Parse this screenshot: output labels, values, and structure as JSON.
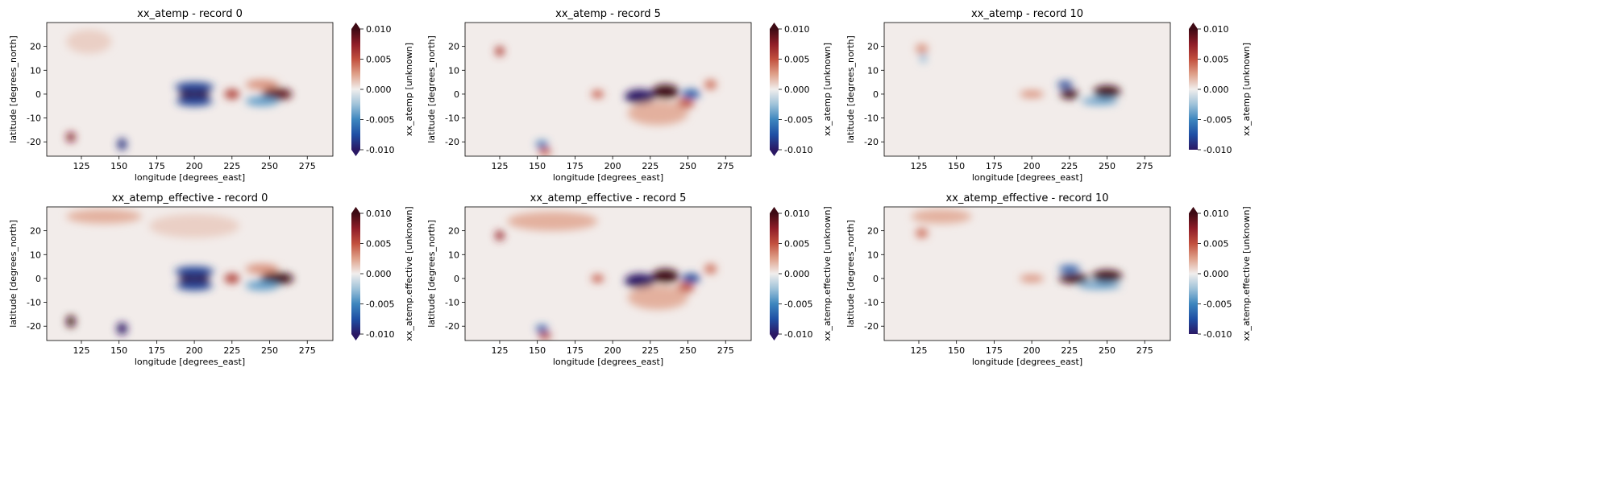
{
  "colormap": {
    "name": "balance",
    "stops": [
      "#2a1864",
      "#1f4fa4",
      "#3d86be",
      "#9fc2d9",
      "#f1eeed",
      "#dfa18a",
      "#c2503e",
      "#8f1d28",
      "#3e0a14"
    ],
    "under_color": "#2a1864",
    "over_color": "#3e0a14"
  },
  "chart_data": [
    {
      "type": "heatmap",
      "title": "xx_atemp - record 0",
      "xlabel": "longitude [degrees_east]",
      "ylabel": "latitude [degrees_north]",
      "xlim": [
        102,
        292
      ],
      "ylim": [
        -26,
        30
      ],
      "xticks": [
        125,
        150,
        175,
        200,
        225,
        250,
        275
      ],
      "yticks": [
        -20,
        -10,
        0,
        10,
        20
      ],
      "colorbar": {
        "label": "xx_atemp [unknown]",
        "vmin": -0.01,
        "vmax": 0.01,
        "ticks": [
          "-0.010",
          "-0.005",
          "0.000",
          "0.005",
          "0.010"
        ],
        "extend": "both"
      },
      "features": [
        {
          "lon": 200,
          "lat": 0,
          "value": 0.012,
          "w": 10,
          "h": 2.5
        },
        {
          "lon": 200,
          "lat": 3,
          "value": -0.008,
          "w": 13,
          "h": 2
        },
        {
          "lon": 200,
          "lat": -3,
          "value": -0.008,
          "w": 12,
          "h": 2
        },
        {
          "lon": 225,
          "lat": 0,
          "value": 0.006,
          "w": 5,
          "h": 2
        },
        {
          "lon": 255,
          "lat": 0,
          "value": 0.009,
          "w": 10,
          "h": 2.5
        },
        {
          "lon": 245,
          "lat": -3,
          "value": -0.004,
          "w": 11,
          "h": 2
        },
        {
          "lon": 245,
          "lat": 4,
          "value": 0.003,
          "w": 11,
          "h": 2
        },
        {
          "lon": 118,
          "lat": -18,
          "value": 0.008,
          "w": 3,
          "h": 2
        },
        {
          "lon": 152,
          "lat": -21,
          "value": -0.009,
          "w": 3,
          "h": 2.5
        },
        {
          "lon": 130,
          "lat": 22,
          "value": 0.001,
          "w": 15,
          "h": 5
        }
      ]
    },
    {
      "type": "heatmap",
      "title": "xx_atemp - record 5",
      "xlabel": "longitude [degrees_east]",
      "ylabel": "latitude [degrees_north]",
      "xlim": [
        102,
        292
      ],
      "ylim": [
        -26,
        30
      ],
      "xticks": [
        125,
        150,
        175,
        200,
        225,
        250,
        275
      ],
      "yticks": [
        -20,
        -10,
        0,
        10,
        20
      ],
      "colorbar": {
        "label": "xx_atemp [unknown]",
        "vmin": -0.01,
        "vmax": 0.01,
        "ticks": [
          "-0.010",
          "-0.005",
          "0.000",
          "0.005",
          "0.010"
        ],
        "extend": "both"
      },
      "features": [
        {
          "lon": 218,
          "lat": -1,
          "value": -0.011,
          "w": 10,
          "h": 3
        },
        {
          "lon": 235,
          "lat": 1,
          "value": 0.013,
          "w": 9,
          "h": 3
        },
        {
          "lon": 252,
          "lat": 0,
          "value": -0.007,
          "w": 6,
          "h": 2
        },
        {
          "lon": 248,
          "lat": -4,
          "value": 0.005,
          "w": 6,
          "h": 2
        },
        {
          "lon": 265,
          "lat": 4,
          "value": 0.004,
          "w": 4,
          "h": 2
        },
        {
          "lon": 190,
          "lat": 0,
          "value": 0.005,
          "w": 4,
          "h": 1.5
        },
        {
          "lon": 125,
          "lat": 18,
          "value": 0.006,
          "w": 3,
          "h": 2
        },
        {
          "lon": 153,
          "lat": -21,
          "value": -0.006,
          "w": 4,
          "h": 1.5
        },
        {
          "lon": 155,
          "lat": -24,
          "value": 0.005,
          "w": 4,
          "h": 1.5
        },
        {
          "lon": 230,
          "lat": -8,
          "value": 0.002,
          "w": 20,
          "h": 5
        }
      ]
    },
    {
      "type": "heatmap",
      "title": "xx_atemp - record 10",
      "xlabel": "longitude [degrees_east]",
      "ylabel": "latitude [degrees_north]",
      "xlim": [
        102,
        292
      ],
      "ylim": [
        -26,
        30
      ],
      "xticks": [
        125,
        150,
        175,
        200,
        225,
        250,
        275
      ],
      "yticks": [
        -20,
        -10,
        0,
        10,
        20
      ],
      "colorbar": {
        "label": "xx_atemp [unknown]",
        "vmin": -0.01,
        "vmax": 0.01,
        "ticks": [
          "-0.010",
          "-0.005",
          "0.000",
          "0.005",
          "0.010"
        ],
        "extend": "max"
      },
      "features": [
        {
          "lon": 225,
          "lat": 0,
          "value": 0.011,
          "w": 6,
          "h": 2
        },
        {
          "lon": 250,
          "lat": 1,
          "value": 0.012,
          "w": 9,
          "h": 2.5
        },
        {
          "lon": 222,
          "lat": 4,
          "value": -0.008,
          "w": 5,
          "h": 1.5
        },
        {
          "lon": 245,
          "lat": -3,
          "value": -0.004,
          "w": 12,
          "h": 1.5
        },
        {
          "lon": 200,
          "lat": 0,
          "value": 0.003,
          "w": 8,
          "h": 1.5
        },
        {
          "lon": 127,
          "lat": 19,
          "value": 0.003,
          "w": 4,
          "h": 2
        },
        {
          "lon": 128,
          "lat": 15,
          "value": -0.003,
          "w": 2,
          "h": 2
        }
      ]
    },
    {
      "type": "heatmap",
      "title": "xx_atemp_effective - record 0",
      "xlabel": "longitude [degrees_east]",
      "ylabel": "latitude [degrees_north]",
      "xlim": [
        102,
        292
      ],
      "ylim": [
        -26,
        30
      ],
      "xticks": [
        125,
        150,
        175,
        200,
        225,
        250,
        275
      ],
      "yticks": [
        -20,
        -10,
        0,
        10,
        20
      ],
      "colorbar": {
        "label": "xx_atemp.effective [unknown]",
        "vmin": -0.01,
        "vmax": 0.01,
        "ticks": [
          "-0.010",
          "-0.005",
          "0.000",
          "0.005",
          "0.010"
        ],
        "extend": "both"
      },
      "features": [
        {
          "lon": 200,
          "lat": 0,
          "value": 0.012,
          "w": 10,
          "h": 2.5
        },
        {
          "lon": 200,
          "lat": 3,
          "value": -0.008,
          "w": 13,
          "h": 2
        },
        {
          "lon": 200,
          "lat": -3,
          "value": -0.008,
          "w": 12,
          "h": 2
        },
        {
          "lon": 225,
          "lat": 0,
          "value": 0.006,
          "w": 5,
          "h": 2
        },
        {
          "lon": 255,
          "lat": 0,
          "value": 0.01,
          "w": 11,
          "h": 2.5
        },
        {
          "lon": 245,
          "lat": -3,
          "value": -0.004,
          "w": 11,
          "h": 2
        },
        {
          "lon": 245,
          "lat": 4,
          "value": 0.003,
          "w": 11,
          "h": 2
        },
        {
          "lon": 118,
          "lat": -18,
          "value": 0.01,
          "w": 3,
          "h": 2.5
        },
        {
          "lon": 152,
          "lat": -21,
          "value": -0.011,
          "w": 3.5,
          "h": 2.5
        },
        {
          "lon": 140,
          "lat": 26,
          "value": 0.002,
          "w": 25,
          "h": 3
        },
        {
          "lon": 200,
          "lat": 22,
          "value": 0.001,
          "w": 30,
          "h": 5
        }
      ]
    },
    {
      "type": "heatmap",
      "title": "xx_atemp_effective - record 5",
      "xlabel": "longitude [degrees_east]",
      "ylabel": "latitude [degrees_north]",
      "xlim": [
        102,
        292
      ],
      "ylim": [
        -26,
        30
      ],
      "xticks": [
        125,
        150,
        175,
        200,
        225,
        250,
        275
      ],
      "yticks": [
        -20,
        -10,
        0,
        10,
        20
      ],
      "colorbar": {
        "label": "xx_atemp.effective [unknown]",
        "vmin": -0.01,
        "vmax": 0.01,
        "ticks": [
          "-0.010",
          "-0.005",
          "0.000",
          "0.005",
          "0.010"
        ],
        "extend": "both"
      },
      "features": [
        {
          "lon": 218,
          "lat": -1,
          "value": -0.012,
          "w": 10,
          "h": 3
        },
        {
          "lon": 235,
          "lat": 1,
          "value": 0.013,
          "w": 9,
          "h": 3
        },
        {
          "lon": 252,
          "lat": 0,
          "value": -0.008,
          "w": 6,
          "h": 2
        },
        {
          "lon": 248,
          "lat": -4,
          "value": 0.005,
          "w": 6,
          "h": 2
        },
        {
          "lon": 265,
          "lat": 4,
          "value": 0.004,
          "w": 4,
          "h": 2
        },
        {
          "lon": 190,
          "lat": 0,
          "value": 0.005,
          "w": 4,
          "h": 1.5
        },
        {
          "lon": 125,
          "lat": 18,
          "value": 0.007,
          "w": 3,
          "h": 2
        },
        {
          "lon": 153,
          "lat": -21,
          "value": -0.007,
          "w": 4,
          "h": 1.5
        },
        {
          "lon": 155,
          "lat": -24,
          "value": 0.006,
          "w": 4,
          "h": 1.5
        },
        {
          "lon": 160,
          "lat": 24,
          "value": 0.002,
          "w": 30,
          "h": 4
        },
        {
          "lon": 230,
          "lat": -8,
          "value": 0.002,
          "w": 20,
          "h": 5
        }
      ]
    },
    {
      "type": "heatmap",
      "title": "xx_atemp_effective - record 10",
      "xlabel": "longitude [degrees_east]",
      "ylabel": "latitude [degrees_north]",
      "xlim": [
        102,
        292
      ],
      "ylim": [
        -26,
        30
      ],
      "xticks": [
        125,
        150,
        175,
        200,
        225,
        250,
        275
      ],
      "yticks": [
        -20,
        -10,
        0,
        10,
        20
      ],
      "colorbar": {
        "label": "xx_atemp.effective [unknown]",
        "vmin": -0.01,
        "vmax": 0.01,
        "ticks": [
          "-0.010",
          "-0.005",
          "0.000",
          "0.005",
          "0.010"
        ],
        "extend": "max"
      },
      "features": [
        {
          "lon": 228,
          "lat": 0,
          "value": 0.011,
          "w": 10,
          "h": 2
        },
        {
          "lon": 250,
          "lat": 1,
          "value": 0.013,
          "w": 10,
          "h": 2.5
        },
        {
          "lon": 225,
          "lat": 4,
          "value": -0.007,
          "w": 7,
          "h": 1.5
        },
        {
          "lon": 245,
          "lat": -3,
          "value": -0.004,
          "w": 14,
          "h": 1.5
        },
        {
          "lon": 200,
          "lat": 0,
          "value": 0.003,
          "w": 8,
          "h": 1.5
        },
        {
          "lon": 127,
          "lat": 19,
          "value": 0.004,
          "w": 4,
          "h": 2
        },
        {
          "lon": 140,
          "lat": 26,
          "value": 0.002,
          "w": 20,
          "h": 3
        }
      ]
    }
  ]
}
